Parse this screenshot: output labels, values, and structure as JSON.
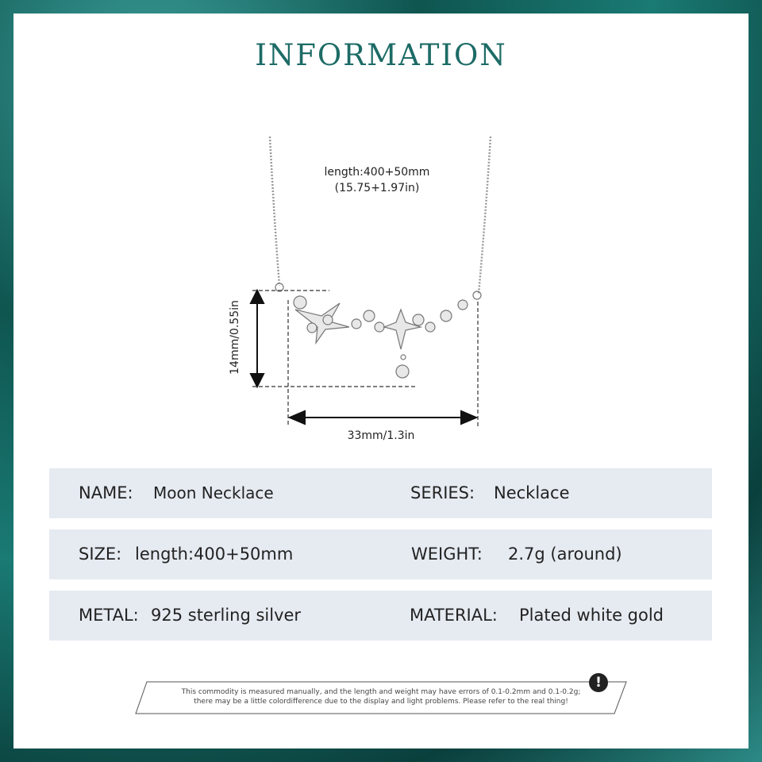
{
  "title": "INFORMATION",
  "dimensions": {
    "length_line1": "length:400+50mm",
    "length_line2": "(15.75+1.97in)",
    "height": "14mm/0.55in",
    "width": "33mm/1.3in"
  },
  "rows": [
    {
      "left_label": "NAME:",
      "left_value": "Moon Necklace",
      "right_label": "SERIES:",
      "right_value": "Necklace"
    },
    {
      "left_label": "SIZE:",
      "left_value": "length:400+50mm",
      "right_label": "WEIGHT:",
      "right_value": "2.7g (around)"
    },
    {
      "left_label": "METAL:",
      "left_value": "925 sterling silver",
      "right_label": "MATERIAL:",
      "right_value": "Plated white gold"
    }
  ],
  "note": {
    "line1": "This commodity is measured manually, and the length and weight may have errors of 0.1-0.2mm and 0.1-0.2g;",
    "line2": "there may be a little colordifference due to the display and light problems. Please refer to the real thing!",
    "icon": "exclamation-icon"
  },
  "colors": {
    "title": "#1d6b66",
    "row_bg": "#e6ebf2",
    "frame": "#0f5550"
  }
}
